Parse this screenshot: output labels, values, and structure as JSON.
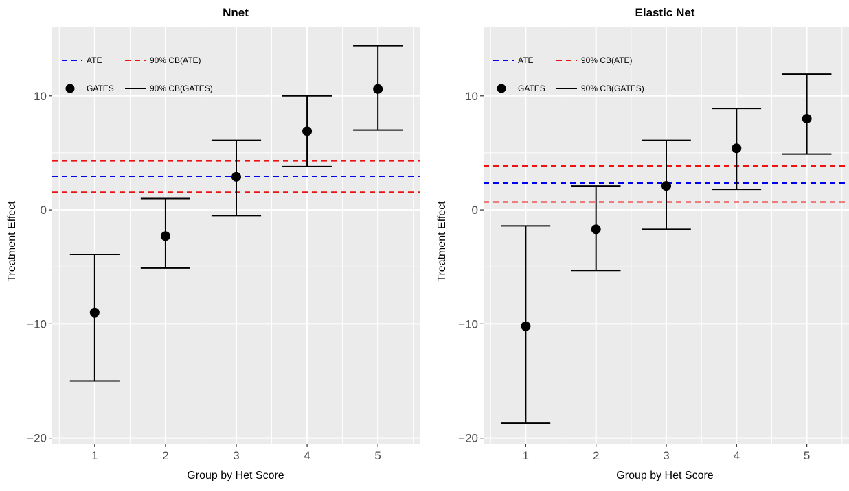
{
  "colors": {
    "ate": "#0000ee",
    "cb_ate": "#ee1111",
    "gates": "#000000"
  },
  "chart_data": [
    {
      "type": "scatter",
      "title": "Nnet",
      "xlabel": "Group by Het Score",
      "ylabel": "Treatment Effect",
      "categories": [
        "1",
        "2",
        "3",
        "4",
        "5"
      ],
      "yticks": [
        -20,
        -10,
        0,
        10
      ],
      "ytick_labels": [
        "−20",
        "−10",
        "0",
        "10"
      ],
      "ylim": [
        -20.5,
        16
      ],
      "grid": true,
      "legend_position": "top-left",
      "legend": {
        "ate": "ATE",
        "cb_ate": "90% CB(ATE)",
        "gates": "GATES",
        "cb_gates": "90% CB(GATES)"
      },
      "ate": 2.95,
      "cb_ate": [
        1.55,
        4.3
      ],
      "gates": [
        {
          "group": 1,
          "estimate": -9.0,
          "lower": -15.0,
          "upper": -3.9
        },
        {
          "group": 2,
          "estimate": -2.3,
          "lower": -5.1,
          "upper": 1.0
        },
        {
          "group": 3,
          "estimate": 2.9,
          "lower": -0.5,
          "upper": 6.1
        },
        {
          "group": 4,
          "estimate": 6.9,
          "lower": 3.8,
          "upper": 10.0
        },
        {
          "group": 5,
          "estimate": 10.6,
          "lower": 7.0,
          "upper": 14.4
        }
      ]
    },
    {
      "type": "scatter",
      "title": "Elastic Net",
      "xlabel": "Group by Het Score",
      "ylabel": "Treatment Effect",
      "categories": [
        "1",
        "2",
        "3",
        "4",
        "5"
      ],
      "yticks": [
        -20,
        -10,
        0,
        10
      ],
      "ytick_labels": [
        "−20",
        "−10",
        "0",
        "10"
      ],
      "ylim": [
        -20.5,
        16
      ],
      "grid": true,
      "legend_position": "top-left",
      "legend": {
        "ate": "ATE",
        "cb_ate": "90% CB(ATE)",
        "gates": "GATES",
        "cb_gates": "90% CB(GATES)"
      },
      "ate": 2.35,
      "cb_ate": [
        0.7,
        3.85
      ],
      "gates": [
        {
          "group": 1,
          "estimate": -10.2,
          "lower": -18.7,
          "upper": -1.4
        },
        {
          "group": 2,
          "estimate": -1.7,
          "lower": -5.3,
          "upper": 2.1
        },
        {
          "group": 3,
          "estimate": 2.1,
          "lower": -1.7,
          "upper": 6.1
        },
        {
          "group": 4,
          "estimate": 5.4,
          "lower": 1.8,
          "upper": 8.9
        },
        {
          "group": 5,
          "estimate": 8.0,
          "lower": 4.9,
          "upper": 11.9
        }
      ]
    }
  ]
}
